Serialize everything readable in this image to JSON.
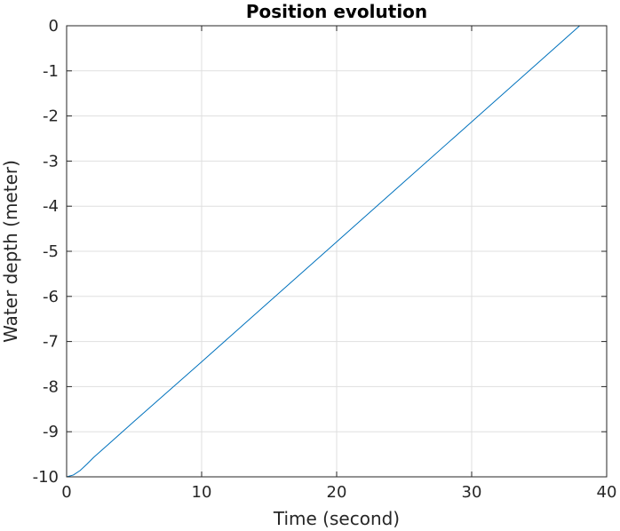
{
  "chart_data": {
    "type": "line",
    "title": "Position evolution",
    "xlabel": "Time (second)",
    "ylabel": "Water depth (meter)",
    "xlim": [
      0,
      40
    ],
    "ylim": [
      -10,
      0
    ],
    "xticks": [
      0,
      10,
      20,
      30,
      40
    ],
    "xtick_labels": [
      "0",
      "10",
      "20",
      "30",
      "40"
    ],
    "yticks": [
      0,
      -1,
      -2,
      -3,
      -4,
      -5,
      -6,
      -7,
      -8,
      -9,
      -10
    ],
    "ytick_labels": [
      "0",
      "-1",
      "-2",
      "-3",
      "-4",
      "-5",
      "-6",
      "-7",
      "-8",
      "-9",
      "-10"
    ],
    "grid": true,
    "series": [
      {
        "color": "#0072BD",
        "x": [
          0,
          0.5,
          1.0,
          1.5,
          2.0,
          5.0,
          10.0,
          15.0,
          20.0,
          25.0,
          30.0,
          35.0,
          38.0,
          38.3,
          40.0
        ],
        "y": [
          -10.0,
          -9.96,
          -9.86,
          -9.72,
          -9.57,
          -8.77,
          -7.45,
          -6.12,
          -4.79,
          -3.46,
          -2.13,
          -0.8,
          0.0,
          0.0,
          0.0
        ]
      }
    ]
  }
}
